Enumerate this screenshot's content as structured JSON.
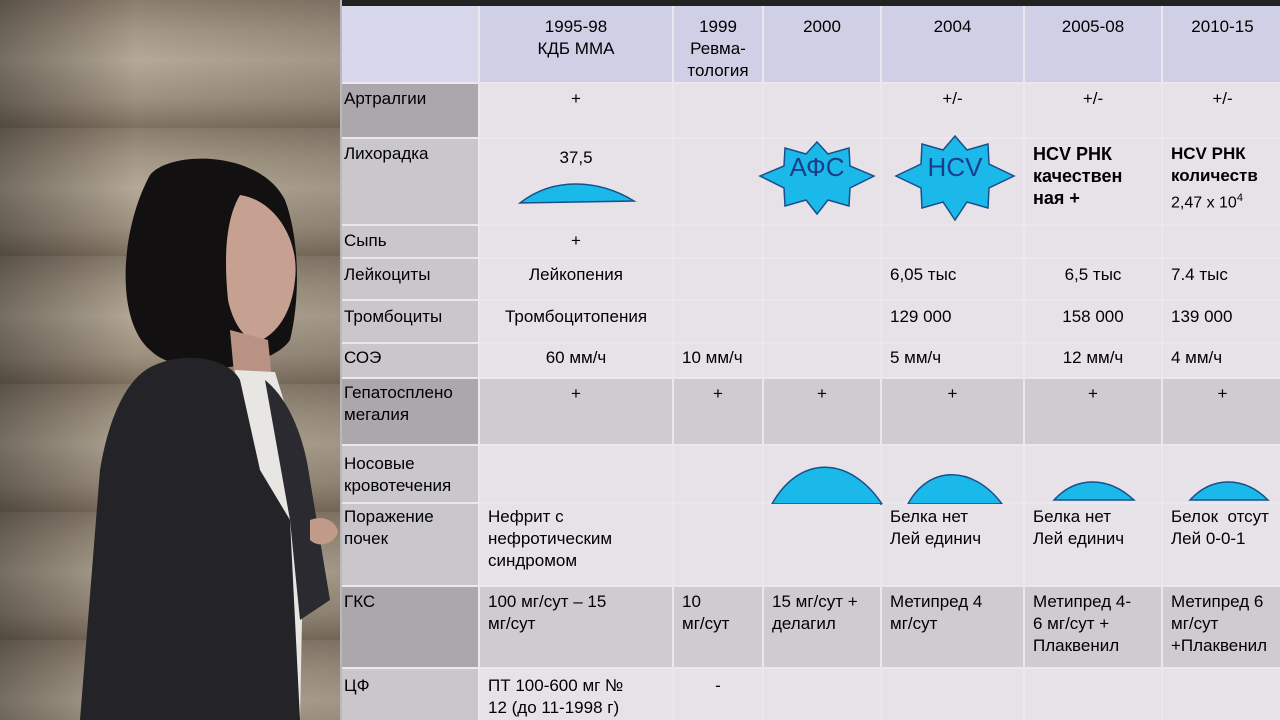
{
  "table": {
    "header": [
      "1995-98\nКДБ ММА",
      "1999\nРевма-\nтология",
      "2000",
      "2004",
      "2005-08",
      "2010-15"
    ],
    "rows": {
      "arthralgia": {
        "label": "Артралгии",
        "cells": [
          "+",
          "",
          "",
          "+/-",
          "+/-",
          "+/-"
        ]
      },
      "fever": {
        "label": "Лихорадка",
        "c1": "37,5",
        "afs": "АФС",
        "hcv": "HCV",
        "c5": "HCV РНК качествен ная +",
        "c6a": "HCV РНК количеств",
        "c6b": "2,47 x 10",
        "c6sup": "4"
      },
      "rash": {
        "label": "Сыпь",
        "c1": "+"
      },
      "leukocytes": {
        "label": "Лейкоциты",
        "cells": [
          "Лейкопения",
          "",
          "",
          "6,05 тыс",
          "6,5 тыс",
          "7.4 тыс"
        ]
      },
      "platelets": {
        "label": "Тромбоциты",
        "cells": [
          "Тромбоцитопения",
          "",
          "",
          "129 000",
          "158 000",
          "139 000"
        ]
      },
      "esr": {
        "label": "СОЭ",
        "cells": [
          "60 мм/ч",
          "10 мм/ч",
          "",
          "5 мм/ч",
          "12 мм/ч",
          "4 мм/ч"
        ]
      },
      "hepato": {
        "label": "Гепатосплено\nмегалия",
        "cells": [
          "+",
          "+",
          "+",
          "+",
          "+",
          "+"
        ]
      },
      "nosebleed": {
        "label": "Носовые\nкровотечения"
      },
      "kidney": {
        "label": "Поражение\nпочек",
        "cells": [
          "Нефрит с\nнефротическим\nсиндромом",
          "",
          "",
          "Белка нет\nЛей единич",
          "Белка нет\nЛей единич",
          "Белок  отсут\nЛей 0-0-1"
        ]
      },
      "gcs": {
        "label": "ГКС",
        "cells": [
          "100 мг/сут – 15\nмг/сут",
          "10\nмг/сут",
          "15 мг/сут +\nделагил",
          "Метипред 4\nмг/сут",
          "Метипред 4-\n6 мг/сут +\nПлаквенил",
          "Метипред 6\nмг/сут\n+Плаквенил"
        ]
      },
      "cf": {
        "label": "ЦФ",
        "cells": [
          "ПТ 100-600 мг №\n12 (до 11-1998 г)",
          "-",
          "",
          "",
          "",
          ""
        ]
      }
    }
  },
  "colors": {
    "accent_shape": "#1bb8ea",
    "shape_outline": "#1a4f8a",
    "header_bg": "#cfd0e6"
  }
}
